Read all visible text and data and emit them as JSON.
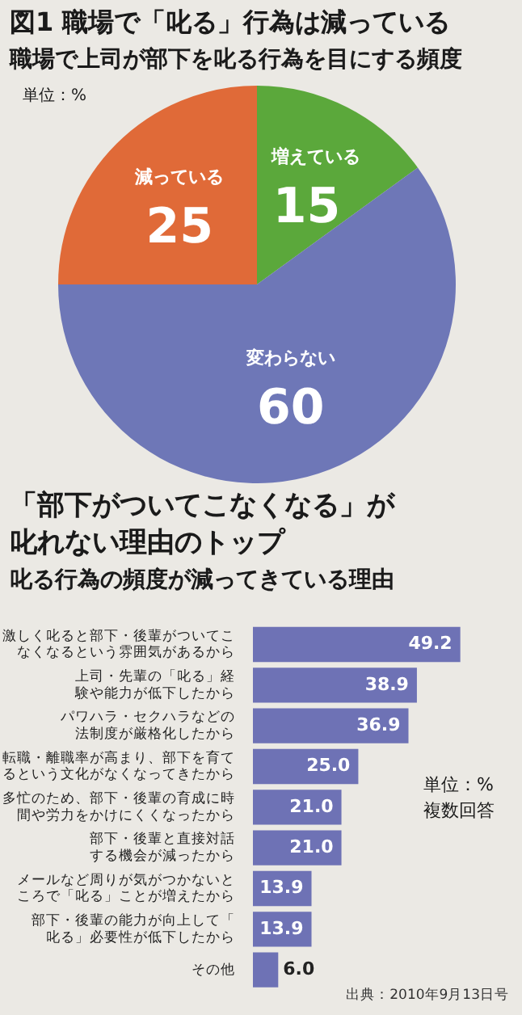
{
  "chart_data": [
    {
      "type": "pie",
      "title": "図1  職場で「叱る」行為は減っている",
      "subtitle": "職場で上司が部下を叱る行為を目にする頻度",
      "annotations": [
        "単位：%"
      ],
      "categories": [
        "増えている",
        "変わらない",
        "減っている"
      ],
      "values": [
        15,
        60,
        25
      ],
      "colors": [
        "#5ba83b",
        "#6e77b7",
        "#e06a38"
      ],
      "data_labels": true
    },
    {
      "type": "bar",
      "orientation": "horizontal",
      "title": "「部下がついてこなくなる」が叱れない理由のトップ",
      "subtitle": "叱る行為の頻度が減ってきている理由",
      "annotations": [
        "単位：%",
        "複数回答",
        "出典：2010年9月13日号"
      ],
      "categories": [
        "激しく叱ると部下・後輩がついてこなくなるという雰囲気があるから",
        "上司・先輩の「叱る」経験や能力が低下したから",
        "パワハラ・セクハラなどの法制度が厳格化したから",
        "転職・離職率が高まり、部下を育てるという文化がなくなってきたから",
        "多忙のため、部下・後輩の育成に時間や労力をかけにくくなったから",
        "部下・後輩と直接対話する機会が減ったから",
        "メールなど周りが気がつかないところで「叱る」ことが増えたから",
        "部下・後輩の能力が向上して「叱る」必要性が低下したから",
        "その他"
      ],
      "values": [
        49.2,
        38.9,
        36.9,
        25.0,
        21.0,
        21.0,
        13.9,
        13.9,
        6.0
      ],
      "value_labels": [
        "49.2",
        "38.9",
        "36.9",
        "25.0",
        "21.0",
        "21.0",
        "13.9",
        "13.9",
        "6.0"
      ],
      "color": "#6e72b5"
    }
  ]
}
